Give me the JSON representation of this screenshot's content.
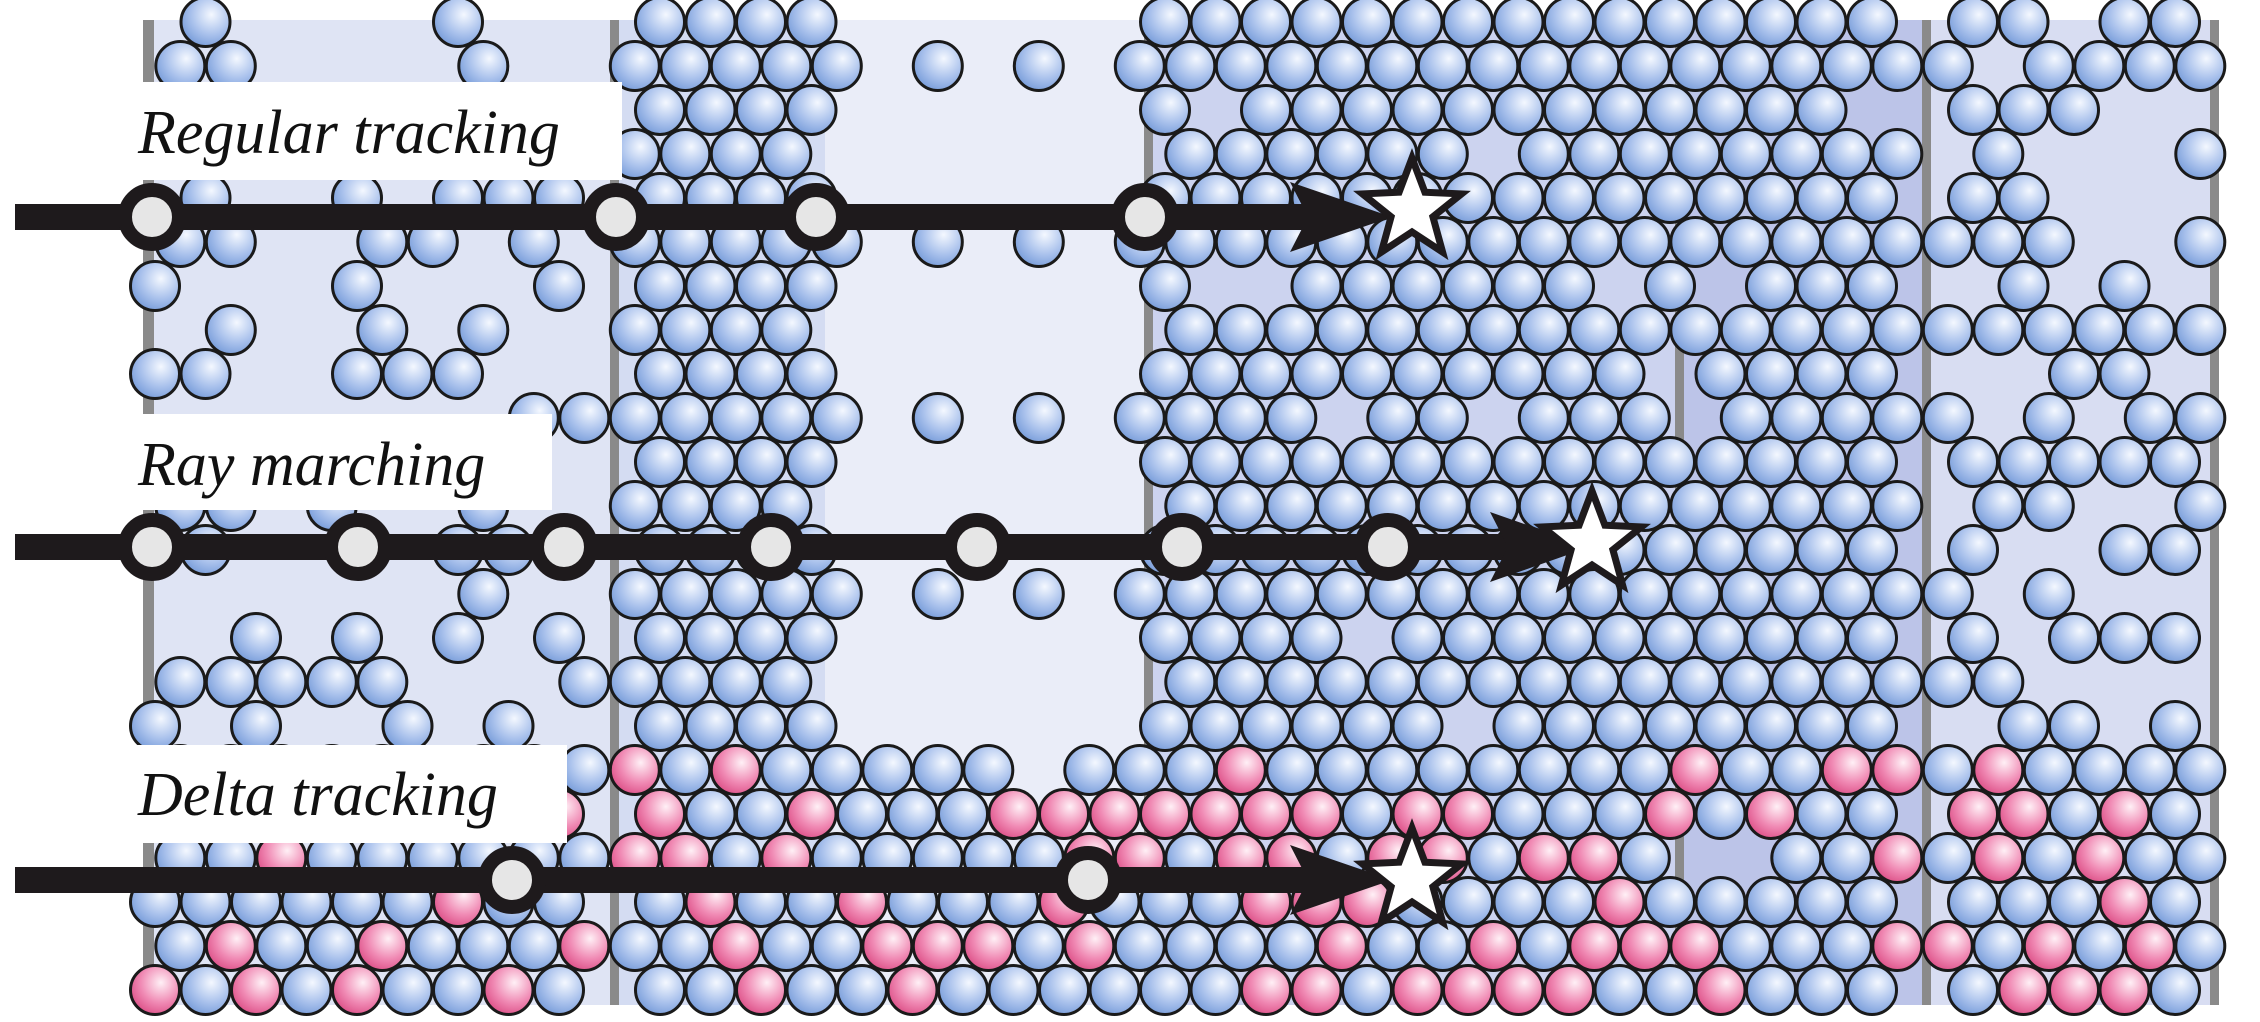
{
  "figure": {
    "methods": [
      {
        "id": "regular",
        "label": "Regular tracking"
      },
      {
        "id": "ray",
        "label": "Ray marching"
      },
      {
        "id": "delta",
        "label": "Delta tracking"
      }
    ],
    "colors": {
      "background": "#ffffff",
      "particle_blue_light": "#e4edfb",
      "particle_blue_dark": "#6e95d6",
      "particle_pink_light": "#fde6ef",
      "particle_pink_dark": "#d9457f",
      "particle_outline": "#1a1a1a",
      "arrow": "#1e1a1c",
      "boundary": "#8a8a8a",
      "label_box": "#ffffff"
    },
    "icons": [
      "star-icon",
      "arrow-icon",
      "circle-marker-icon"
    ]
  }
}
